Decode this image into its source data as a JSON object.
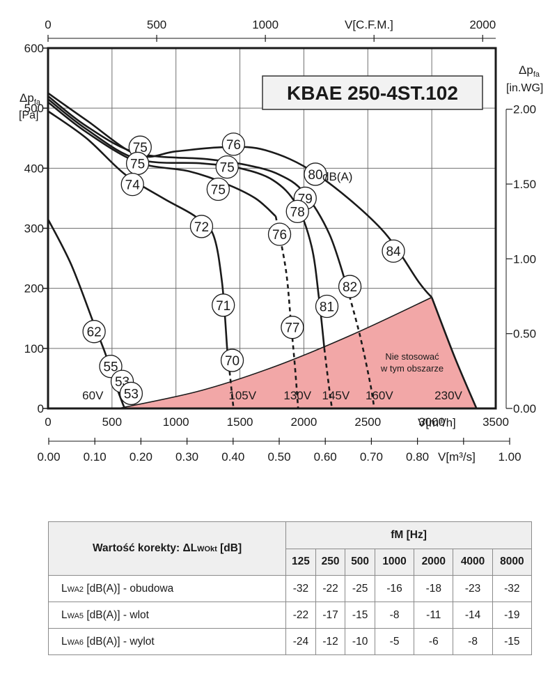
{
  "chart_data": {
    "type": "line",
    "title": "KBAE 250-4ST.102",
    "ylabel_left": "Δp",
    "ylabel_left_sub": "fa",
    "ylabel_left_unit": "[Pa]",
    "ylabel_right": "Δp",
    "ylabel_right_sub": "fa",
    "ylabel_right_unit": "[in.WG]",
    "xlabel_bottom": "V[m³/h]",
    "xlabel_top": "V[C.F.M.]",
    "xlabel_ms": "V[m³/s]",
    "xlim": [
      0,
      3500
    ],
    "ylim": [
      0,
      600
    ],
    "grid": true,
    "x_ticks_bottom": [
      "0",
      "500",
      "1000",
      "1500",
      "2000",
      "2500",
      "3000",
      "3500"
    ],
    "y_ticks_left": [
      "0",
      "100",
      "200",
      "300",
      "400",
      "500",
      "600"
    ],
    "x_ticks_top": [
      "0",
      "500",
      "1000",
      "2000"
    ],
    "y_ticks_right": [
      "0.00",
      "0.50",
      "1.00",
      "1.50",
      "2.00"
    ],
    "x_ticks_ms": [
      "0.00",
      "0.10",
      "0.20",
      "0.30",
      "0.40",
      "0.50",
      "0.60",
      "0.70",
      "0.80",
      "1.00"
    ],
    "series": [
      {
        "name": "60V",
        "points": [
          [
            0,
            315
          ],
          [
            180,
            240
          ],
          [
            360,
            140
          ],
          [
            450,
            90
          ],
          [
            520,
            45
          ],
          [
            580,
            10
          ],
          [
            600,
            0
          ]
        ]
      },
      {
        "name": "105V",
        "points": [
          [
            0,
            495
          ],
          [
            300,
            450
          ],
          [
            600,
            390
          ],
          [
            900,
            350
          ],
          [
            1150,
            320
          ],
          [
            1290,
            290
          ],
          [
            1360,
            210
          ],
          [
            1400,
            100
          ],
          [
            1430,
            40
          ],
          [
            1450,
            0
          ]
        ]
      },
      {
        "name": "130V",
        "points": [
          [
            0,
            510
          ],
          [
            300,
            460
          ],
          [
            700,
            410
          ],
          [
            1100,
            395
          ],
          [
            1380,
            375
          ],
          [
            1620,
            350
          ],
          [
            1780,
            320
          ],
          [
            1860,
            230
          ],
          [
            1900,
            140
          ],
          [
            1930,
            70
          ],
          [
            1955,
            0
          ]
        ]
      },
      {
        "name": "145V",
        "points": [
          [
            0,
            515
          ],
          [
            300,
            465
          ],
          [
            700,
            415
          ],
          [
            1200,
            408
          ],
          [
            1500,
            400
          ],
          [
            1760,
            380
          ],
          [
            1940,
            340
          ],
          [
            2060,
            270
          ],
          [
            2120,
            180
          ],
          [
            2160,
            100
          ],
          [
            2200,
            30
          ],
          [
            2220,
            0
          ]
        ]
      },
      {
        "name": "160V",
        "points": [
          [
            0,
            520
          ],
          [
            300,
            470
          ],
          [
            700,
            425
          ],
          [
            1250,
            415
          ],
          [
            1560,
            405
          ],
          [
            1800,
            390
          ],
          [
            2000,
            360
          ],
          [
            2200,
            290
          ],
          [
            2340,
            200
          ],
          [
            2440,
            120
          ],
          [
            2520,
            40
          ],
          [
            2550,
            0
          ]
        ]
      },
      {
        "name": "230V",
        "points": [
          [
            0,
            525
          ],
          [
            300,
            480
          ],
          [
            700,
            422
          ],
          [
            1000,
            428
          ],
          [
            1370,
            435
          ],
          [
            1700,
            430
          ],
          [
            2100,
            390
          ],
          [
            2600,
            300
          ],
          [
            2900,
            210
          ],
          [
            3000,
            185
          ]
        ]
      },
      {
        "name": "230V-boundary",
        "points": [
          [
            3000,
            185
          ],
          [
            3180,
            85
          ],
          [
            3350,
            0
          ]
        ]
      },
      {
        "name": "limit",
        "points": [
          [
            550,
            0
          ],
          [
            1200,
            30
          ],
          [
            1800,
            72
          ],
          [
            2400,
            125
          ],
          [
            3000,
            185
          ]
        ]
      }
    ],
    "dashed_from": {
      "105V": 1420,
      "130V": 1850,
      "145V": 2160,
      "160V": 2380
    },
    "region_label": [
      "Nie stosować",
      "w tym obszarze"
    ],
    "region_color": "#f2a7a7",
    "markers": [
      {
        "label": "62",
        "x": 360,
        "y": 128
      },
      {
        "label": "55",
        "x": 490,
        "y": 70
      },
      {
        "label": "53",
        "x": 580,
        "y": 45
      },
      {
        "label": "53",
        "x": 650,
        "y": 25
      },
      {
        "label": "75",
        "x": 720,
        "y": 435
      },
      {
        "label": "75",
        "x": 700,
        "y": 408
      },
      {
        "label": "74",
        "x": 660,
        "y": 373
      },
      {
        "label": "72",
        "x": 1200,
        "y": 303
      },
      {
        "label": "71",
        "x": 1370,
        "y": 172
      },
      {
        "label": "70",
        "x": 1440,
        "y": 80
      },
      {
        "label": "76",
        "x": 1450,
        "y": 440
      },
      {
        "label": "75",
        "x": 1400,
        "y": 402
      },
      {
        "label": "75",
        "x": 1330,
        "y": 365
      },
      {
        "label": "80",
        "x": 2090,
        "y": 390
      },
      {
        "label": "79",
        "x": 2010,
        "y": 350
      },
      {
        "label": "78",
        "x": 1950,
        "y": 328
      },
      {
        "label": "76",
        "x": 1810,
        "y": 290
      },
      {
        "label": "77",
        "x": 1910,
        "y": 135
      },
      {
        "label": "84",
        "x": 2700,
        "y": 262
      },
      {
        "label": "82",
        "x": 2360,
        "y": 203
      },
      {
        "label": "81",
        "x": 2180,
        "y": 170
      }
    ],
    "dba_label": "dB(A)",
    "voltage_labels": [
      {
        "label": "60V",
        "x": 350,
        "y": 22
      },
      {
        "label": "105V",
        "x": 1520,
        "y": 22
      },
      {
        "label": "130V",
        "x": 1950,
        "y": 22
      },
      {
        "label": "145V",
        "x": 2250,
        "y": 22
      },
      {
        "label": "160V",
        "x": 2590,
        "y": 22
      },
      {
        "label": "230V",
        "x": 3130,
        "y": 22
      }
    ]
  },
  "table": {
    "corner_label": "Wartość korekty:  ΔL",
    "corner_sub": "WOkt",
    "corner_unit": " [dB]",
    "freq_header": "fM [Hz]",
    "frequencies": [
      "125",
      "250",
      "500",
      "1000",
      "2000",
      "4000",
      "8000"
    ],
    "rows": [
      {
        "prefix": "L",
        "sub": "WA2",
        "label": " [dB(A)] - obudowa",
        "values": [
          "-32",
          "-22",
          "-25",
          "-16",
          "-18",
          "-23",
          "-32"
        ]
      },
      {
        "prefix": "L",
        "sub": "WA5",
        "label": " [dB(A)] - wlot",
        "values": [
          "-22",
          "-17",
          "-15",
          "-8",
          "-11",
          "-14",
          "-19"
        ]
      },
      {
        "prefix": "L",
        "sub": "WA6",
        "label": " [dB(A)] - wylot",
        "values": [
          "-24",
          "-12",
          "-10",
          "-5",
          "-6",
          "-8",
          "-15"
        ]
      }
    ]
  }
}
